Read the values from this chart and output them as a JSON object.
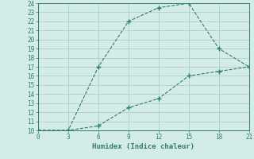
{
  "line1_x": [
    0,
    3,
    6,
    9,
    12,
    15,
    18,
    21
  ],
  "line1_y": [
    10,
    10,
    17,
    22,
    23.5,
    24,
    19,
    17
  ],
  "line2_x": [
    0,
    3,
    6,
    9,
    12,
    15,
    18,
    21
  ],
  "line2_y": [
    10,
    10,
    10.5,
    12.5,
    13.5,
    16,
    16.5,
    17
  ],
  "color": "#2d7d6e",
  "xlabel": "Humidex (Indice chaleur)",
  "xlim": [
    0,
    21
  ],
  "ylim": [
    10,
    24
  ],
  "xticks": [
    0,
    3,
    6,
    9,
    12,
    15,
    18,
    21
  ],
  "yticks": [
    10,
    11,
    12,
    13,
    14,
    15,
    16,
    17,
    18,
    19,
    20,
    21,
    22,
    23,
    24
  ],
  "bg_color": "#d4ece8",
  "grid_color": "#b0cfc8",
  "marker": "+"
}
